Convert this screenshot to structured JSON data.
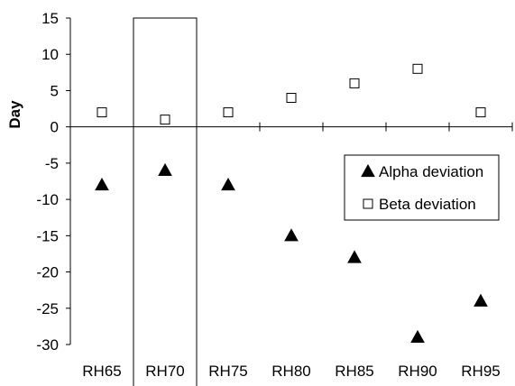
{
  "chart_data": {
    "type": "scatter",
    "title": "",
    "xlabel": "",
    "ylabel": "Day",
    "ylim": [
      -30,
      15
    ],
    "yticks": [
      15,
      10,
      5,
      0,
      -5,
      -10,
      -15,
      -20,
      -25,
      -30
    ],
    "grid": false,
    "legend_position": "right",
    "categories": [
      "RH65",
      "RH70",
      "RH75",
      "RH80",
      "RH85",
      "RH90",
      "RH95"
    ],
    "highlighted_category": "RH70",
    "series": [
      {
        "name": "Alpha deviation",
        "marker": "filled-triangle",
        "color": "#000000",
        "values": [
          -8,
          -6,
          -8,
          -15,
          -18,
          -29,
          -24
        ]
      },
      {
        "name": "Beta deviation",
        "marker": "open-square",
        "color": "#000000",
        "values": [
          2,
          1,
          2,
          4,
          6,
          8,
          2
        ]
      }
    ]
  }
}
